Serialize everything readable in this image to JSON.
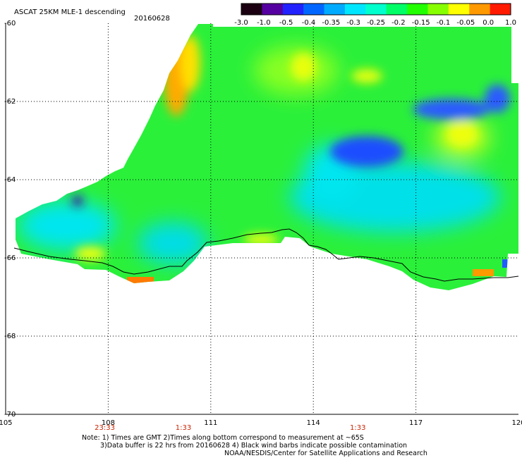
{
  "header": {
    "title": "ASCAT 25KM MLE-1 descending",
    "date": "20160628"
  },
  "colorbar": {
    "ticks": [
      "-3.0",
      "-1.0",
      "-0.5",
      "-0.4",
      "-0.35",
      "-0.3",
      "-0.25",
      "-0.2",
      "-0.15",
      "-0.1",
      "-0.05",
      "0.0",
      "1.0"
    ],
    "colors": [
      "#1a0010",
      "#5500a0",
      "#2222ff",
      "#0066ff",
      "#00aaff",
      "#00e6ff",
      "#00ffcc",
      "#00ff66",
      "#22ff00",
      "#88ff00",
      "#ffff00",
      "#ff9900",
      "#ff1a00"
    ]
  },
  "chart_data": {
    "type": "heatmap",
    "title": "ASCAT 25KM MLE-1 descending",
    "date": "20160628",
    "x_ticks": [
      "105",
      "108",
      "111",
      "114",
      "117",
      "120"
    ],
    "y_ticks": [
      "-60",
      "-62",
      "-64",
      "-66",
      "-68",
      "-70"
    ],
    "xlim": [
      105,
      120
    ],
    "ylim": [
      -70,
      -60
    ],
    "time_labels": [
      {
        "lon": 107.9,
        "text": "23:33"
      },
      {
        "lon": 110.2,
        "text": "1:33"
      },
      {
        "lon": 115.3,
        "text": "1:33"
      }
    ],
    "regions": [
      {
        "label": "green background field (-0.2 to -0.15)",
        "value": -0.17
      },
      {
        "label": "blue patch near 115-116E, 64S",
        "value": -0.4
      },
      {
        "label": "blue patch near 118-120E, 62.5S",
        "value": -0.4
      },
      {
        "label": "yellow area near 113E, 61S",
        "value": -0.08
      },
      {
        "label": "orange fringe along 109-110E, 61-62.5S",
        "value": -0.02
      },
      {
        "label": "cyan area near 106-107E, 65.5S",
        "value": -0.3
      }
    ]
  },
  "notes": {
    "line1": "Note: 1) Times are GMT 2)Times along bottom correspond to measurement at ~65S",
    "line2": "3)Data buffer is 22 hrs from 20160628 4) Black wind barbs indicate possible contamination",
    "line3": "NOAA/NESDIS/Center for Satellite Applications and Research"
  }
}
